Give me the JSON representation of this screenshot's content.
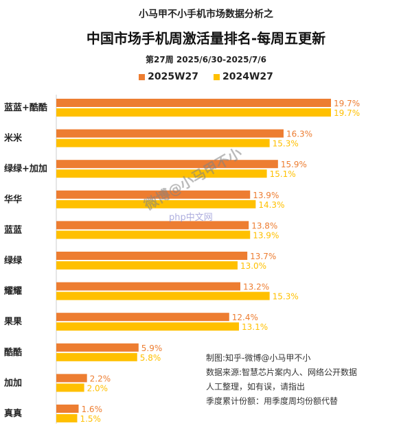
{
  "header": {
    "supertitle": "小马甲不小手机市场数据分析之",
    "title": "中国市场手机周激活量排名-每周五更新",
    "subtitle": "第27周 2025/6/30-2025/7/6"
  },
  "watermarks": {
    "weibo": "微博@小马甲不小",
    "site": "php中文网"
  },
  "notes": [
    "制图:知乎-微博@小马甲不小",
    "数据来源:智慧芯片案内人、网络公开数据",
    "人工整理，如有误，请指出",
    "季度累计份额：用季度周均份额代替"
  ],
  "chart_data": {
    "type": "bar",
    "orientation": "horizontal",
    "categories": [
      "蓝蓝+酷酷",
      "米米",
      "绿绿+加加",
      "华华",
      "蓝蓝",
      "绿绿",
      "耀耀",
      "果果",
      "酷酷",
      "加加",
      "真真"
    ],
    "series": [
      {
        "name": "2025W27",
        "color": "#ED7D31",
        "values": [
          19.7,
          16.3,
          15.9,
          13.9,
          13.8,
          13.7,
          13.2,
          12.4,
          5.9,
          2.2,
          1.6
        ],
        "labels": [
          "19.7%",
          "16.3%",
          "15.9%",
          "13.9%",
          "13.8%",
          "13.7%",
          "13.2%",
          "12.4%",
          "5.9%",
          "2.2%",
          "1.6%"
        ]
      },
      {
        "name": "2024W27",
        "color": "#FFC000",
        "values": [
          19.7,
          15.3,
          15.1,
          14.3,
          13.9,
          13.0,
          15.3,
          13.1,
          5.8,
          2.0,
          1.5
        ],
        "labels": [
          "19.7%",
          "15.3%",
          "15.1%",
          "14.3%",
          "13.9%",
          "13.0%",
          "15.3%",
          "13.1%",
          "5.8%",
          "2.0%",
          "1.5%"
        ]
      }
    ],
    "legend_position": "top",
    "grid": false
  }
}
